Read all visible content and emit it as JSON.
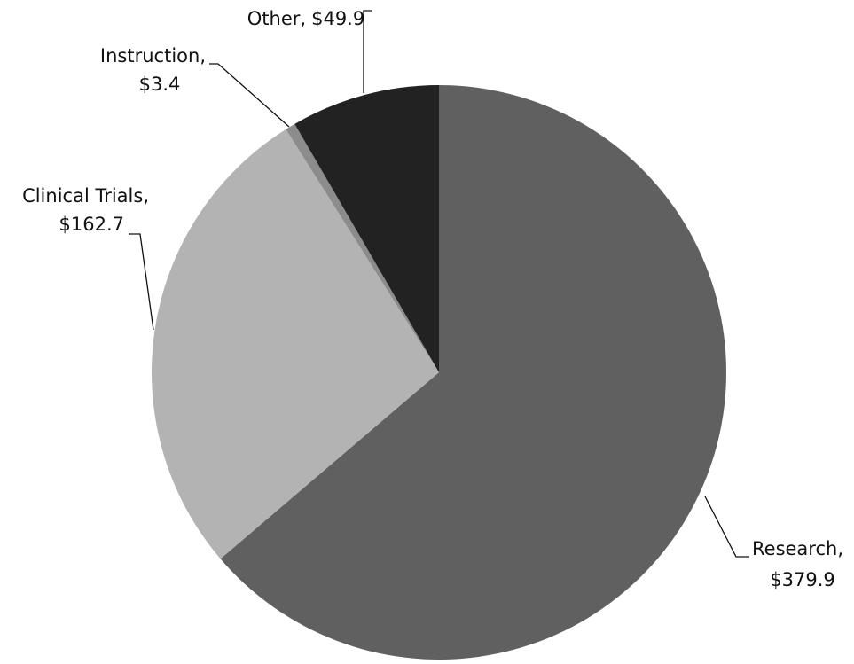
{
  "chart_data": {
    "type": "pie",
    "categories": [
      "Research,",
      "Clinical Trials,",
      "Instruction,",
      "Other,"
    ],
    "values": [
      379.9,
      162.7,
      3.4,
      49.9
    ],
    "value_labels": [
      "$379.9",
      "$162.7",
      "$3.4",
      "$49.9"
    ],
    "colors": [
      "#606060",
      "#b3b3b3",
      "#8c8c8c",
      "#222222"
    ],
    "start_angle": 0,
    "direction": "clockwise"
  }
}
